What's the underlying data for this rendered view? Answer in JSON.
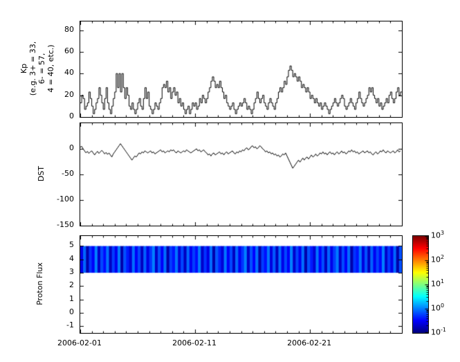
{
  "figure": {
    "background": "#ffffff",
    "axis_color": "#000000"
  },
  "x_axis": {
    "tick_labels": [
      "2006-02-01",
      "2006-02-11",
      "2006-02-21"
    ],
    "tick_days": [
      0,
      10,
      20
    ],
    "total_days": 28,
    "start_date": "2006-02-01"
  },
  "chart_data": [
    {
      "type": "line",
      "subtype": "step",
      "ylabel": "Kp\n(e.g. 3+ = 33,\n6- = 57,\n4 = 40, etc.)",
      "ylim": [
        0,
        88
      ],
      "yticks": [
        0,
        20,
        40,
        60,
        80
      ],
      "line_color": "#000000",
      "x_interval_hours": 3,
      "values": [
        13,
        20,
        17,
        7,
        10,
        13,
        23,
        17,
        10,
        3,
        7,
        13,
        17,
        27,
        20,
        13,
        7,
        17,
        27,
        13,
        7,
        3,
        10,
        17,
        23,
        40,
        27,
        40,
        23,
        40,
        27,
        17,
        27,
        20,
        10,
        7,
        13,
        7,
        3,
        7,
        13,
        17,
        10,
        7,
        17,
        27,
        17,
        23,
        10,
        7,
        3,
        7,
        13,
        10,
        7,
        13,
        17,
        27,
        30,
        27,
        33,
        23,
        27,
        17,
        23,
        27,
        20,
        23,
        13,
        17,
        10,
        13,
        7,
        3,
        7,
        10,
        3,
        7,
        13,
        10,
        13,
        7,
        10,
        17,
        13,
        20,
        17,
        13,
        17,
        23,
        27,
        33,
        37,
        33,
        27,
        30,
        27,
        33,
        27,
        23,
        17,
        20,
        13,
        10,
        7,
        10,
        13,
        7,
        3,
        7,
        10,
        13,
        10,
        13,
        17,
        13,
        7,
        10,
        7,
        3,
        7,
        13,
        17,
        23,
        17,
        13,
        17,
        20,
        13,
        10,
        7,
        13,
        17,
        13,
        10,
        7,
        13,
        17,
        23,
        27,
        23,
        27,
        33,
        30,
        37,
        43,
        47,
        43,
        37,
        40,
        37,
        33,
        37,
        33,
        27,
        30,
        27,
        23,
        27,
        23,
        17,
        20,
        17,
        13,
        17,
        13,
        10,
        13,
        7,
        10,
        13,
        10,
        7,
        3,
        7,
        10,
        13,
        17,
        13,
        10,
        13,
        17,
        20,
        17,
        10,
        7,
        10,
        13,
        17,
        13,
        10,
        7,
        13,
        17,
        23,
        17,
        13,
        10,
        13,
        17,
        20,
        27,
        23,
        27,
        20,
        17,
        13,
        17,
        10,
        13,
        7,
        10,
        13,
        17,
        13,
        20,
        23,
        17,
        13,
        17,
        23,
        27,
        20,
        23
      ]
    },
    {
      "type": "line",
      "subtype": "plain",
      "ylabel": "DST",
      "ylim": [
        -150,
        50
      ],
      "yticks": [
        0,
        -50,
        -100,
        -150
      ],
      "line_color": "#000000",
      "x_interval_hours": 3,
      "values": [
        3,
        5,
        0,
        -4,
        -8,
        -5,
        -9,
        -6,
        -4,
        -8,
        -12,
        -8,
        -5,
        -9,
        -6,
        -3,
        -6,
        -10,
        -7,
        -11,
        -8,
        -12,
        -16,
        -10,
        -6,
        -2,
        2,
        6,
        10,
        6,
        2,
        -2,
        -6,
        -10,
        -14,
        -18,
        -22,
        -18,
        -14,
        -16,
        -12,
        -8,
        -10,
        -6,
        -8,
        -4,
        -6,
        -8,
        -6,
        -4,
        -8,
        -6,
        -10,
        -8,
        -6,
        -4,
        -2,
        -6,
        -4,
        -8,
        -6,
        -4,
        -6,
        -2,
        -4,
        -2,
        -6,
        -8,
        -4,
        -6,
        -8,
        -6,
        -4,
        -6,
        -2,
        -4,
        -6,
        -8,
        -6,
        -4,
        -2,
        0,
        -4,
        -2,
        -6,
        -4,
        -2,
        -6,
        -8,
        -12,
        -10,
        -14,
        -10,
        -8,
        -12,
        -10,
        -8,
        -6,
        -10,
        -8,
        -12,
        -8,
        -6,
        -10,
        -8,
        -6,
        -4,
        -8,
        -10,
        -6,
        -8,
        -4,
        -6,
        -2,
        -4,
        0,
        2,
        -2,
        0,
        4,
        6,
        2,
        4,
        0,
        2,
        6,
        4,
        0,
        -2,
        -6,
        -4,
        -8,
        -6,
        -10,
        -8,
        -12,
        -10,
        -14,
        -12,
        -16,
        -14,
        -10,
        -12,
        -8,
        -14,
        -20,
        -26,
        -32,
        -38,
        -34,
        -30,
        -26,
        -22,
        -26,
        -22,
        -18,
        -22,
        -18,
        -16,
        -20,
        -16,
        -12,
        -16,
        -14,
        -10,
        -14,
        -12,
        -8,
        -10,
        -6,
        -10,
        -8,
        -12,
        -8,
        -6,
        -10,
        -8,
        -12,
        -8,
        -6,
        -10,
        -8,
        -4,
        -8,
        -6,
        -10,
        -8,
        -4,
        -6,
        -2,
        -6,
        -4,
        -8,
        -6,
        -10,
        -8,
        -6,
        -4,
        -8,
        -6,
        -4,
        -8,
        -6,
        -10,
        -12,
        -8,
        -6,
        -10,
        -8,
        -4,
        -6,
        -2,
        -6,
        -8,
        -4,
        -6,
        -8,
        -6,
        -4,
        -8,
        -6,
        -2,
        -6,
        -4
      ]
    },
    {
      "type": "heatmap",
      "ylabel": "Proton Flux",
      "ylim": [
        -1.5,
        5.75
      ],
      "yticks": [
        -1,
        0,
        1,
        2,
        3,
        4,
        5
      ],
      "band_y": [
        3,
        5
      ],
      "x_interval_hours": 6,
      "values": [
        0.25,
        0.8,
        0.15,
        0.5,
        0.3,
        1.0,
        0.2,
        0.6,
        0.35,
        0.9,
        0.18,
        0.55,
        0.28,
        0.95,
        0.15,
        0.65,
        0.4,
        0.22,
        0.85,
        0.3,
        0.6,
        0.18,
        0.75,
        0.25,
        0.5,
        1.0,
        0.2,
        0.65,
        0.3,
        0.85,
        0.15,
        0.55,
        0.38,
        0.9,
        0.22,
        0.6,
        0.18,
        0.8,
        0.28,
        0.55,
        0.35,
        0.95,
        0.2,
        0.5,
        0.25,
        0.85,
        0.15,
        0.7,
        0.42,
        0.22,
        0.9,
        0.3,
        0.6,
        0.18,
        0.8,
        0.28,
        0.5,
        1.0,
        0.2,
        0.65,
        0.32,
        0.88,
        0.15,
        0.55,
        0.36,
        0.92,
        0.24,
        0.7,
        0.18,
        0.82,
        0.26,
        0.6,
        0.3,
        1.0,
        0.2,
        0.58,
        0.28,
        0.86,
        0.15,
        0.66,
        0.4,
        0.22,
        0.9,
        0.32,
        0.64,
        0.18,
        0.78,
        0.26,
        0.55,
        0.96,
        0.2,
        0.62,
        0.3,
        0.84,
        0.15,
        0.5,
        0.38,
        0.9,
        0.24,
        0.66,
        0.18,
        0.76,
        0.28,
        0.58,
        0.34,
        1.0,
        0.2,
        0.52,
        0.26,
        0.8,
        0.15,
        0.64
      ],
      "colorbar": {
        "orientation": "vertical",
        "scale": "log",
        "min_exp": -1,
        "max_exp": 3,
        "tick_exponents": [
          3,
          2,
          1,
          0,
          -1
        ],
        "colormap": "jet"
      }
    }
  ]
}
